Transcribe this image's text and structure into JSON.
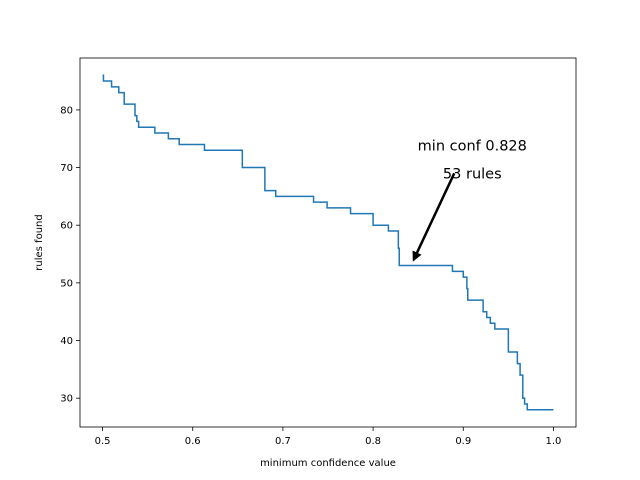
{
  "chart_data": {
    "type": "line",
    "xlabel": "minimum confidence value",
    "ylabel": "rules found",
    "xlim": [
      0.475,
      1.025
    ],
    "ylim": [
      25.0,
      89.0
    ],
    "xticks": [
      0.5,
      0.6,
      0.7,
      0.8,
      0.9,
      1.0
    ],
    "xtick_labels": [
      "0.5",
      "0.6",
      "0.7",
      "0.8",
      "0.9",
      "1.0"
    ],
    "yticks": [
      30,
      40,
      50,
      60,
      70,
      80
    ],
    "ytick_labels": [
      "30",
      "40",
      "50",
      "60",
      "70",
      "80"
    ],
    "series": [
      {
        "name": "rules found",
        "color": "#1f77b4",
        "step": "post",
        "x": [
          0.5,
          0.501,
          0.51,
          0.518,
          0.524,
          0.527,
          0.536,
          0.538,
          0.54,
          0.542,
          0.558,
          0.573,
          0.585,
          0.602,
          0.613,
          0.655,
          0.68,
          0.692,
          0.734,
          0.749,
          0.775,
          0.8,
          0.817,
          0.828,
          0.829,
          0.888,
          0.9,
          0.904,
          0.905,
          0.922,
          0.923,
          0.926,
          0.93,
          0.935,
          0.95,
          0.956,
          0.96,
          0.963,
          0.966,
          0.968,
          0.971,
          0.975,
          1.0
        ],
        "y": [
          86,
          85,
          84,
          83,
          81,
          81,
          79,
          78,
          77,
          77,
          76,
          75,
          74,
          74,
          73,
          70,
          66,
          65,
          64,
          63,
          62,
          60,
          59,
          56,
          53,
          52,
          51,
          49,
          47,
          45,
          45,
          44,
          43,
          42,
          38,
          38,
          36,
          34,
          30,
          29,
          28,
          28,
          28
        ]
      }
    ],
    "annotation": {
      "lines": [
        "min conf 0.828",
        "53 rules"
      ],
      "point": [
        0.845,
        54.0
      ],
      "text_anchor": [
        0.91,
        73.0
      ],
      "arrow_tail": [
        0.89,
        69.0
      ]
    }
  }
}
